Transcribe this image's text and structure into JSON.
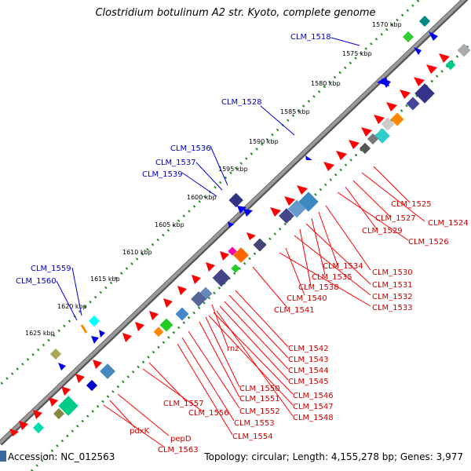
{
  "title": "Clostridium botulinum A2 str. Kyoto, complete genome",
  "footer": {
    "accession": "Accession: NC_012563",
    "info": "Topology: circular; Length: 4,155,278 bp; Genes: 3,977"
  },
  "kbp_labels": [
    "1570 kbp",
    "1575 kbp",
    "1580 kbp",
    "1585 kbp",
    "1590 kbp",
    "1595 kbp",
    "1600 kbp",
    "1605 kbp",
    "1610 kbp",
    "1615 kbp",
    "1620 kbp",
    "1625 kbp"
  ],
  "blue_gene_labels": [
    "CLM_1518",
    "CLM_1528",
    "CLM_1536",
    "CLM_1537",
    "CLM_1539",
    "CLM_1559",
    "CLM_1560"
  ],
  "red_gene_labels": [
    "CLM_1525",
    "CLM_1524",
    "CLM_1527",
    "CLM_1529",
    "CLM_1526",
    "CLM_1530",
    "CLM_1534",
    "CLM_1535",
    "CLM_1531",
    "CLM_1538",
    "CLM_1532",
    "CLM_1540",
    "CLM_1533",
    "CLM_1541",
    "CLM_1542",
    "rnz",
    "CLM_1543",
    "CLM_1544",
    "CLM_1545",
    "CLM_1546",
    "CLM_1550",
    "CLM_1547",
    "CLM_1551",
    "CLM_1557",
    "CLM_1548",
    "CLM_1552",
    "CLM_1556",
    "CLM_1553",
    "CLM_1554",
    "pdxK",
    "pepD",
    "CLM_1563"
  ],
  "colors": {
    "backbone": "#888888",
    "backbone_edge": "#555555",
    "tick_green": "#228B22",
    "forward_gene": "#ff0000",
    "reverse_gene": "#0000ff",
    "label_blue": "#0000cc",
    "label_red": "#cc0000",
    "leader_blue": "#0000dd",
    "leader_red": "#ff0000"
  }
}
